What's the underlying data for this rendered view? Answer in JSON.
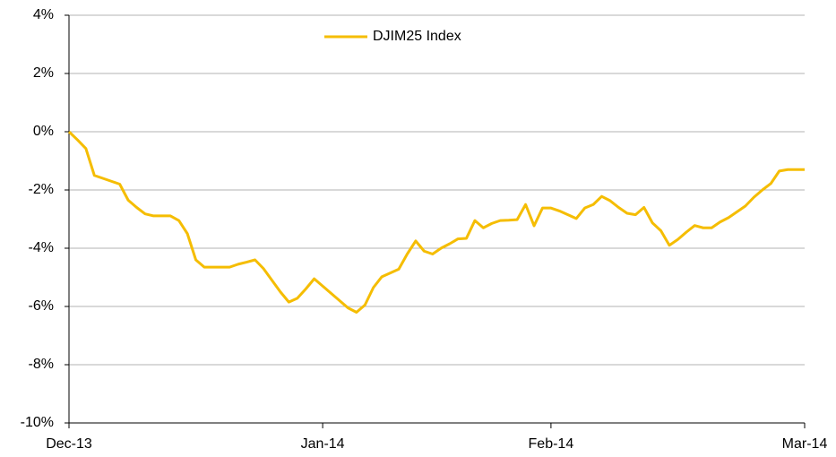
{
  "chart_data": {
    "type": "line",
    "categories": [
      "Dec-13",
      null,
      null,
      null,
      null,
      null,
      null,
      null,
      null,
      null,
      null,
      null,
      null,
      null,
      null,
      null,
      null,
      null,
      null,
      null,
      null,
      null,
      null,
      null,
      null,
      null,
      null,
      null,
      null,
      null,
      "Jan-14",
      null,
      null,
      null,
      null,
      null,
      null,
      null,
      null,
      null,
      null,
      null,
      null,
      null,
      null,
      null,
      null,
      null,
      null,
      null,
      null,
      null,
      null,
      null,
      null,
      null,
      null,
      "Feb-14",
      null,
      null,
      null,
      null,
      null,
      null,
      null,
      null,
      null,
      null,
      null,
      null,
      null,
      null,
      null,
      null,
      null,
      null,
      null,
      null,
      null,
      null,
      null,
      null,
      null,
      null,
      null,
      null,
      null,
      "Mar-14"
    ],
    "series": [
      {
        "name": "DJIM25 Index",
        "color": "#f5bd02",
        "values": [
          0,
          -0.28,
          -0.58,
          -1.5,
          -1.6,
          -1.7,
          -1.8,
          -2.35,
          -2.6,
          -2.82,
          -2.89,
          -2.89,
          -2.89,
          -3.05,
          -3.5,
          -4.4,
          -4.65,
          -4.65,
          -4.65,
          -4.65,
          -4.55,
          -4.48,
          -4.4,
          -4.7,
          -5.1,
          -5.5,
          -5.85,
          -5.72,
          -5.4,
          -5.05,
          -5.3,
          -5.55,
          -5.8,
          -6.05,
          -6.2,
          -5.95,
          -5.35,
          -4.98,
          -4.85,
          -4.72,
          -4.2,
          -3.75,
          -4.1,
          -4.2,
          -4.0,
          -3.85,
          -3.68,
          -3.66,
          -3.05,
          -3.3,
          -3.15,
          -3.05,
          -3.04,
          -3.02,
          -2.5,
          -3.23,
          -2.62,
          -2.62,
          -2.72,
          -2.85,
          -2.98,
          -2.62,
          -2.5,
          -2.22,
          -2.37,
          -2.6,
          -2.8,
          -2.85,
          -2.6,
          -3.13,
          -3.4,
          -3.9,
          -3.7,
          -3.45,
          -3.22,
          -3.3,
          -3.3,
          -3.1,
          -2.95,
          -2.75,
          -2.55,
          -2.25,
          -2.0,
          -1.78,
          -1.35,
          -1.3,
          -1.3,
          -1.3
        ]
      }
    ],
    "ylim": [
      -10,
      4
    ],
    "yticks": [
      {
        "value": -10,
        "label": "-10%"
      },
      {
        "value": -8,
        "label": "-8%"
      },
      {
        "value": -6,
        "label": "-6%"
      },
      {
        "value": -4,
        "label": "-4%"
      },
      {
        "value": -2,
        "label": "-2%"
      },
      {
        "value": 0,
        "label": "0%"
      },
      {
        "value": 2,
        "label": "2%"
      },
      {
        "value": 4,
        "label": "4%"
      }
    ],
    "grid": true,
    "legend": "top"
  }
}
